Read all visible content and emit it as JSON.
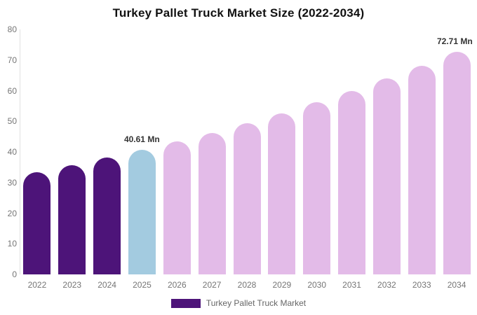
{
  "chart_data": {
    "type": "bar",
    "title": "Turkey Pallet Truck Market Size (2022-2034)",
    "unit": "Mn",
    "categories": [
      "2022",
      "2023",
      "2024",
      "2025",
      "2026",
      "2027",
      "2028",
      "2029",
      "2030",
      "2031",
      "2032",
      "2033",
      "2034"
    ],
    "series": [
      {
        "name": "Turkey Pallet Truck Market",
        "values": [
          33.44,
          35.68,
          38.07,
          40.61,
          43.33,
          46.23,
          49.32,
          52.62,
          56.14,
          59.9,
          63.91,
          68.18,
          72.71
        ],
        "point_colors": [
          "#4D1479",
          "#4D1479",
          "#4D1479",
          "#A3CBE0",
          "#E3BBE8",
          "#E3BBE8",
          "#E3BBE8",
          "#E3BBE8",
          "#E3BBE8",
          "#E3BBE8",
          "#E3BBE8",
          "#E3BBE8",
          "#E3BBE8"
        ]
      }
    ],
    "ylim": [
      0,
      80
    ],
    "y_ticks": [
      0,
      10,
      20,
      30,
      40,
      50,
      60,
      70,
      80
    ],
    "grid": false,
    "annotations": [
      {
        "category": "2025",
        "text": "40.61 Mn"
      },
      {
        "category": "2034",
        "text": "72.71 Mn"
      }
    ],
    "legend": {
      "position": "bottom",
      "items": [
        {
          "label": "Turkey Pallet Truck Market",
          "color": "#4D1479"
        }
      ]
    },
    "colors": {
      "title": "#111111",
      "axis_label": "#757575",
      "axis_line": "#E0E0E0",
      "data_label": "#333333",
      "legend_text": "#666666",
      "background": "#FFFFFF"
    }
  }
}
